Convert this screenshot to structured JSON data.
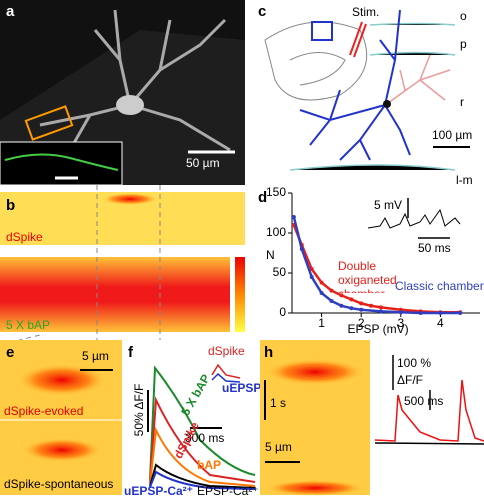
{
  "panels": {
    "a": {
      "letter": "a",
      "scale": "50 µm"
    },
    "b": {
      "letter": "b",
      "top_label": "dSpike",
      "bottom_label": "5 X bAP"
    },
    "c": {
      "letter": "c",
      "stim": "Stim.",
      "layers": [
        "o",
        "p",
        "r",
        "l-m"
      ],
      "scale": "100 µm"
    },
    "d": {
      "letter": "d",
      "inset_v": "5 mV",
      "inset_t": "50 ms"
    },
    "e": {
      "letter": "e",
      "scale": "5 µm",
      "top_label": "dSpike-evoked",
      "bottom_label": "dSpike-spontaneous"
    },
    "f": {
      "letter": "f",
      "y_scale": "50% ΔF/F",
      "t_scale": "300 ms",
      "trace_labels": [
        "5 X bAP",
        "dSpike",
        "bAP",
        "uEPSP-Ca²⁺",
        "EPSP-Ca²⁺"
      ],
      "inset_labels": [
        "dSpike",
        "uEPSP"
      ]
    },
    "h": {
      "letter": "h",
      "t_scale": "1 s",
      "x_scale": "5 µm",
      "amp": "100 %",
      "amp_unit": "ΔF/F",
      "trace_t": "500 ms"
    }
  },
  "chart_data": {
    "type": "line",
    "ylabel": "N",
    "xlabel": "EPSP (mV)",
    "xlim": [
      0,
      5
    ],
    "ylim": [
      0,
      150
    ],
    "xticks": [
      1,
      2,
      3,
      4
    ],
    "yticks": [
      0,
      50,
      100,
      150
    ],
    "series": [
      {
        "name": "Double oxiganeted chamber",
        "color": "#e8201a",
        "x": [
          0.3,
          0.5,
          0.75,
          1,
          1.25,
          1.5,
          1.75,
          2,
          2.25,
          2.5,
          3,
          3.5,
          4,
          4.5
        ],
        "values": [
          110,
          85,
          55,
          38,
          28,
          22,
          17,
          12,
          9,
          7,
          4,
          2,
          1,
          1
        ]
      },
      {
        "name": "Classic chamber",
        "color": "#2f3fc0",
        "x": [
          0.3,
          0.5,
          0.75,
          1,
          1.25,
          1.5,
          1.75,
          2,
          2.5,
          3,
          3.5,
          4,
          4.5
        ],
        "values": [
          120,
          80,
          45,
          25,
          15,
          9,
          6,
          4,
          2,
          1,
          0,
          0,
          0
        ]
      }
    ]
  }
}
